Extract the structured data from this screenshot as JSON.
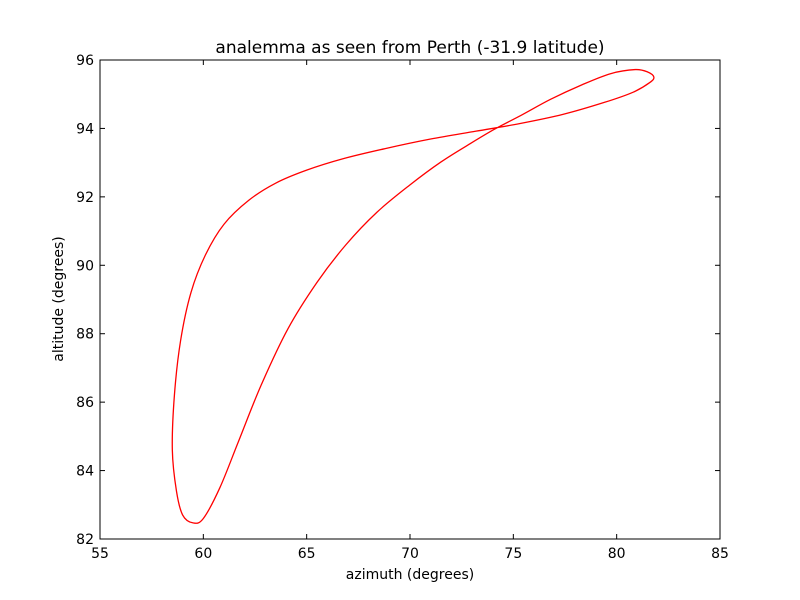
{
  "chart_data": {
    "type": "line",
    "title": "analemma as seen from Perth (-31.9 latitude)",
    "xlabel": "azimuth (degrees)",
    "ylabel": "altitude (degrees)",
    "xlim": [
      55,
      85
    ],
    "ylim": [
      82,
      96
    ],
    "xticks": [
      "55",
      "60",
      "65",
      "70",
      "75",
      "80",
      "85"
    ],
    "yticks": [
      "82",
      "84",
      "86",
      "88",
      "90",
      "92",
      "94",
      "96"
    ],
    "grid": false,
    "legend": "none",
    "series": [
      {
        "color": "#ff0000",
        "closed": true,
        "points": [
          [
            81.8,
            95.5
          ],
          [
            81.5,
            95.65
          ],
          [
            80.9,
            95.72
          ],
          [
            79.7,
            95.6
          ],
          [
            78.3,
            95.27
          ],
          [
            76.8,
            94.85
          ],
          [
            75.4,
            94.39
          ],
          [
            74.1,
            93.98
          ],
          [
            72.9,
            93.55
          ],
          [
            71.5,
            93.02
          ],
          [
            70.0,
            92.35
          ],
          [
            68.4,
            91.55
          ],
          [
            66.9,
            90.6
          ],
          [
            65.5,
            89.5
          ],
          [
            64.1,
            88.15
          ],
          [
            62.8,
            86.5
          ],
          [
            61.7,
            84.85
          ],
          [
            60.8,
            83.5
          ],
          [
            60.0,
            82.6
          ],
          [
            59.5,
            82.47
          ],
          [
            59.0,
            82.7
          ],
          [
            58.7,
            83.4
          ],
          [
            58.5,
            84.6
          ],
          [
            58.6,
            86.2
          ],
          [
            58.9,
            87.8
          ],
          [
            59.4,
            89.2
          ],
          [
            60.1,
            90.3
          ],
          [
            61.0,
            91.2
          ],
          [
            62.2,
            91.9
          ],
          [
            63.5,
            92.4
          ],
          [
            65.0,
            92.78
          ],
          [
            66.8,
            93.12
          ],
          [
            68.8,
            93.41
          ],
          [
            71.0,
            93.69
          ],
          [
            73.2,
            93.92
          ],
          [
            75.3,
            94.14
          ],
          [
            77.4,
            94.41
          ],
          [
            79.4,
            94.76
          ],
          [
            80.8,
            95.06
          ],
          [
            81.6,
            95.34
          ]
        ]
      }
    ]
  }
}
